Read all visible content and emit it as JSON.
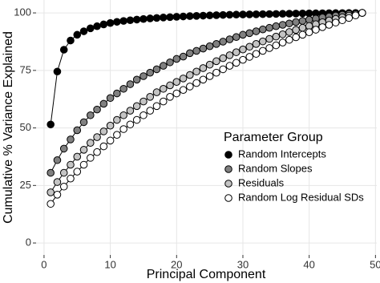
{
  "chart_data": {
    "type": "line",
    "x_label": "Principal Component",
    "y_label": "Cumulative % Variance Explained",
    "legend_title": "Parameter Group",
    "legend": "right",
    "grid": true,
    "x": [
      1,
      2,
      3,
      4,
      5,
      6,
      7,
      8,
      9,
      10,
      11,
      12,
      13,
      14,
      15,
      16,
      17,
      18,
      19,
      20,
      21,
      22,
      23,
      24,
      25,
      26,
      27,
      28,
      29,
      30,
      31,
      32,
      33,
      34,
      35,
      36,
      37,
      38,
      39,
      40,
      41,
      42,
      43,
      44,
      45,
      46,
      47,
      48
    ],
    "series": [
      {
        "name": "Random Intercepts",
        "color": "#000000",
        "values": [
          51.5,
          74.5,
          84,
          88,
          90.5,
          92,
          93.3,
          94.2,
          95,
          95.6,
          96.1,
          96.5,
          96.8,
          97.1,
          97.35,
          97.6,
          97.8,
          98,
          98.15,
          98.3,
          98.45,
          98.6,
          98.7,
          98.8,
          98.9,
          99,
          99.1,
          99.2,
          99.25,
          99.3,
          99.35,
          99.4,
          99.45,
          99.5,
          99.55,
          99.6,
          99.65,
          99.7,
          99.75,
          99.8,
          99.82,
          99.85,
          99.88,
          99.9,
          99.93,
          99.95,
          99.98,
          100
        ]
      },
      {
        "name": "Random Slopes",
        "color": "#808080",
        "values": [
          30.5,
          36,
          41,
          45,
          49,
          52.5,
          55.5,
          58,
          60.5,
          63,
          65,
          67,
          69,
          71,
          72.5,
          74,
          75.5,
          77,
          78.5,
          80,
          81,
          82.5,
          83.5,
          84.5,
          85.5,
          86.5,
          87.5,
          88.5,
          89.5,
          90.5,
          91.2,
          92,
          92.8,
          93.5,
          94.2,
          94.8,
          95.4,
          96,
          96.5,
          97,
          97.5,
          98,
          98.4,
          98.8,
          99.2,
          99.5,
          99.8,
          100
        ]
      },
      {
        "name": "Residuals",
        "color": "#c4c4c4",
        "values": [
          22,
          26.5,
          30.5,
          34,
          37.5,
          40.5,
          43.5,
          46,
          48.5,
          51,
          53.5,
          55.5,
          57.5,
          59.5,
          61.5,
          63.5,
          65.5,
          67,
          68.5,
          70,
          71.5,
          73,
          74.5,
          76,
          77.5,
          79,
          80.3,
          81.6,
          82.9,
          84.1,
          85.3,
          86.5,
          87.6,
          88.7,
          89.7,
          90.7,
          91.7,
          92.6,
          93.5,
          94.3,
          95.1,
          95.9,
          96.7,
          97.4,
          98.1,
          98.8,
          99.4,
          100
        ]
      },
      {
        "name": "Random Log Residual SDs",
        "color": "#ffffff",
        "values": [
          17,
          21,
          24.5,
          28,
          31,
          34,
          37,
          39.5,
          42,
          44.5,
          47,
          49.5,
          51.5,
          53.5,
          55.5,
          57.5,
          59.5,
          61.5,
          63.5,
          65,
          66.5,
          68,
          69.5,
          71,
          72.5,
          74,
          75.5,
          77,
          78.3,
          79.6,
          80.9,
          82.2,
          83.5,
          84.7,
          85.9,
          87.1,
          88.3,
          89.4,
          90.5,
          91.6,
          92.7,
          93.8,
          94.8,
          95.8,
          96.8,
          97.8,
          98.9,
          100
        ]
      }
    ],
    "xlim": [
      -1.2,
      50.2
    ],
    "xticks": [
      0,
      10,
      20,
      30,
      40,
      50
    ],
    "ylim": [
      -5.2,
      105.6
    ],
    "yticks": [
      0,
      25,
      50,
      75,
      100
    ]
  }
}
